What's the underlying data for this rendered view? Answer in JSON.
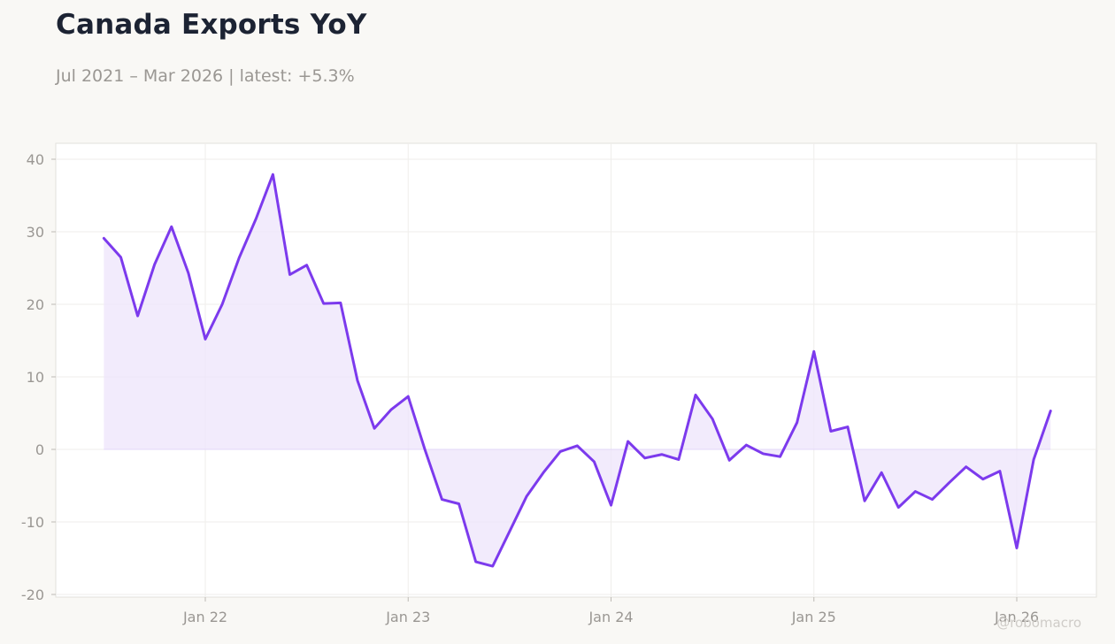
{
  "header": {
    "title": "Canada Exports YoY",
    "subtitle": "Jul 2021 – Mar 2026 | latest: +5.3%"
  },
  "watermark": "@robomacro",
  "colors": {
    "line": "#7c3aed",
    "fill": "#ede4fb",
    "background": "#f9f8f5",
    "plot_background": "#ffffff"
  },
  "chart_data": {
    "type": "area",
    "title": "Canada Exports YoY",
    "subtitle": "Jul 2021 – Mar 2026 | latest: +5.3%",
    "xlabel": "",
    "ylabel": "",
    "ylim": [
      -20,
      40
    ],
    "xlim": [
      "2021-05",
      "2026-06"
    ],
    "y_ticks": [
      -20,
      -10,
      0,
      10,
      20,
      30,
      40
    ],
    "x_ticks": [
      {
        "label": "Jan 22",
        "date": "2022-01"
      },
      {
        "label": "Jan 23",
        "date": "2023-01"
      },
      {
        "label": "Jan 24",
        "date": "2024-01"
      },
      {
        "label": "Jan 25",
        "date": "2025-01"
      },
      {
        "label": "Jan 26",
        "date": "2026-01"
      }
    ],
    "grid": true,
    "series": [
      {
        "x": [
          "2021-07",
          "2021-08",
          "2021-09",
          "2021-10",
          "2021-11",
          "2021-12",
          "2022-01",
          "2022-02",
          "2022-03",
          "2022-04",
          "2022-05",
          "2022-06",
          "2022-07",
          "2022-08",
          "2022-09",
          "2022-10",
          "2022-11",
          "2022-12",
          "2023-01",
          "2023-02",
          "2023-03",
          "2023-04",
          "2023-05",
          "2023-06",
          "2023-07",
          "2023-08",
          "2023-09",
          "2023-10",
          "2023-11",
          "2023-12",
          "2024-01",
          "2024-02",
          "2024-03",
          "2024-04",
          "2024-05",
          "2024-06",
          "2024-07",
          "2024-08",
          "2024-09",
          "2024-10",
          "2024-11",
          "2024-12",
          "2025-01",
          "2025-02",
          "2025-03",
          "2025-04",
          "2025-05",
          "2025-06",
          "2025-07",
          "2025-08",
          "2025-09",
          "2025-10",
          "2025-11",
          "2025-12",
          "2026-01",
          "2026-02",
          "2026-03"
        ],
        "values": [
          29.1,
          26.5,
          18.4,
          25.5,
          30.7,
          24.3,
          15.2,
          20.0,
          26.4,
          31.8,
          37.9,
          24.1,
          25.4,
          20.1,
          20.2,
          9.5,
          2.9,
          5.5,
          7.3,
          -0.1,
          -6.9,
          -7.5,
          -15.5,
          -16.1,
          -11.3,
          -6.5,
          -3.2,
          -0.3,
          0.5,
          -1.7,
          -7.7,
          1.1,
          -1.2,
          -0.7,
          -1.4,
          7.5,
          4.2,
          -1.5,
          0.6,
          -0.6,
          -1.0,
          3.7,
          13.5,
          2.5,
          3.1,
          -7.1,
          -3.2,
          -8.0,
          -5.8,
          -6.9,
          -4.6,
          -2.4,
          -4.1,
          -3.0,
          -13.6,
          -1.4,
          5.3
        ]
      }
    ]
  }
}
